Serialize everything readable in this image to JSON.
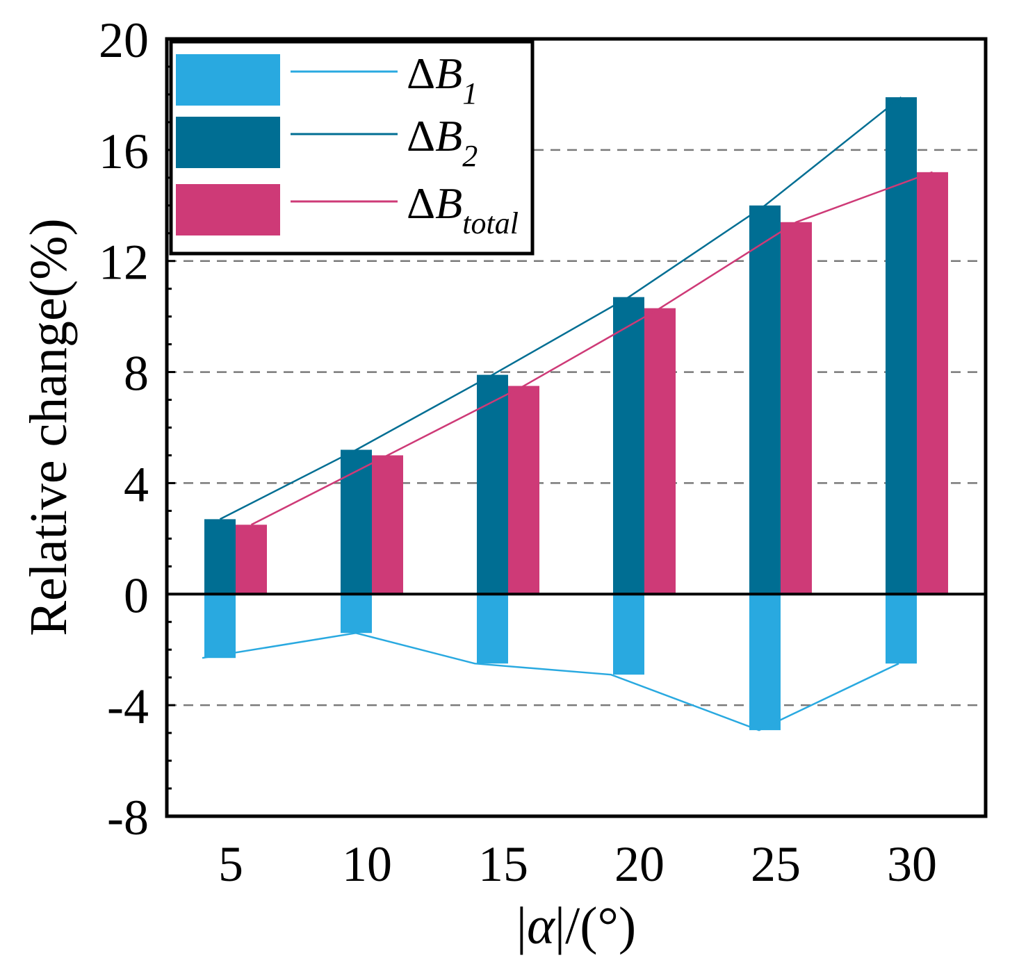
{
  "chart_data": {
    "type": "bar",
    "categories": [
      "5",
      "10",
      "15",
      "20",
      "25",
      "30"
    ],
    "series": [
      {
        "name": "ΔB",
        "sub": "1",
        "color": "#29a9e0",
        "values": [
          -2.3,
          -1.4,
          -2.5,
          -2.9,
          -4.9,
          -2.5
        ]
      },
      {
        "name": "ΔB",
        "sub": "2",
        "color": "#006e93",
        "values": [
          2.7,
          5.2,
          7.9,
          10.7,
          14.0,
          17.9
        ]
      },
      {
        "name": "ΔB",
        "sub": "total",
        "color": "#ce3a77",
        "values": [
          2.5,
          5.0,
          7.5,
          10.3,
          13.4,
          15.2
        ]
      }
    ],
    "xlabel": "|α|/(°)",
    "ylabel": "Relative change(%)",
    "ylim": [
      -8,
      20
    ],
    "yticks": [
      -8,
      -4,
      0,
      4,
      8,
      12,
      16,
      20
    ],
    "grid": "dashed horizontal at major ticks",
    "legend": "top-left"
  }
}
